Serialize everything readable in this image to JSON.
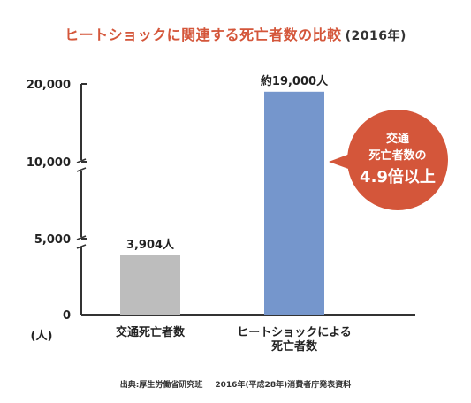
{
  "title": "ヒートショックに関連する死亡者数の比較",
  "title_year": "(2016年)",
  "unit_label": "(人)",
  "callout": {
    "line1": "交通",
    "line2": "死亡者数の",
    "line3": "4.9倍以上",
    "color": "#d4563a"
  },
  "source_prefix": "出典:厚生労働省研究班",
  "source_suffix": "2016年(平成28年)消費者庁発表資料",
  "colors": {
    "bar_traffic": "#bdbdbd",
    "bar_heatshock": "#7596cc",
    "axis": "#333333",
    "title": "#d4563a"
  },
  "chart_data": {
    "type": "bar",
    "categories": [
      [
        "交通死亡者数"
      ],
      [
        "ヒートショックによる",
        "死亡者数"
      ]
    ],
    "values": [
      3904,
      19000
    ],
    "data_labels": [
      "3,904人",
      "約19,000人"
    ],
    "yticks": [
      0,
      5000,
      10000,
      20000
    ],
    "ytick_labels": [
      "0",
      "5,000",
      "10,000",
      "20,000"
    ],
    "ylim": [
      0,
      20000
    ],
    "ylabel": "(人)",
    "grid": false,
    "axis_breaks": true
  }
}
